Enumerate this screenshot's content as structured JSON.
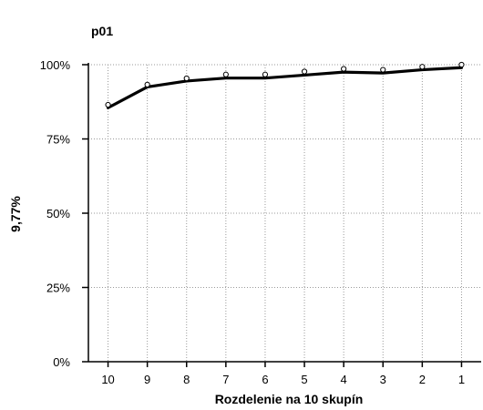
{
  "colors": {
    "line": "#000000",
    "grid": "#9a9a9a",
    "marker": "#000000",
    "background": "#ffffff"
  },
  "chart_data": {
    "type": "line",
    "title": "p01",
    "xlabel": "Rozdelenie na 10 skupín",
    "ylabel": "9,77%",
    "categories": [
      "10",
      "9",
      "8",
      "7",
      "6",
      "5",
      "4",
      "3",
      "2",
      "1"
    ],
    "ylim": [
      0,
      100
    ],
    "yticks": [
      0,
      25,
      50,
      75,
      100
    ],
    "ytick_labels": [
      "0%",
      "25%",
      "50%",
      "75%",
      "100%"
    ],
    "grid": true,
    "series": [
      {
        "style": "line",
        "values": [
          85.5,
          92.5,
          94.5,
          95.5,
          95.5,
          96.5,
          97.5,
          97.2,
          98.3,
          99.0
        ]
      },
      {
        "style": "markers",
        "values": [
          86.5,
          93.3,
          95.4,
          96.7,
          96.7,
          97.7,
          98.6,
          98.3,
          99.3,
          100.0
        ]
      }
    ]
  }
}
